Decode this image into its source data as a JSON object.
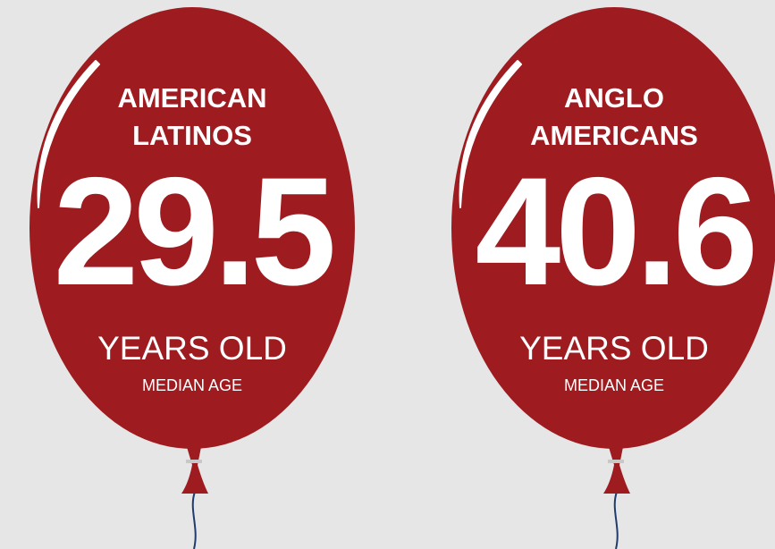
{
  "balloons": [
    {
      "label_lines": [
        "AMERICAN",
        "LATINOS"
      ],
      "value": 29.5,
      "unit": "YEARS OLD",
      "caption": "MEDIAN AGE"
    },
    {
      "label_lines": [
        "ANGLO",
        "AMERICANS"
      ],
      "value": 40.6,
      "unit": "YEARS OLD",
      "caption": "MEDIAN AGE"
    }
  ]
}
